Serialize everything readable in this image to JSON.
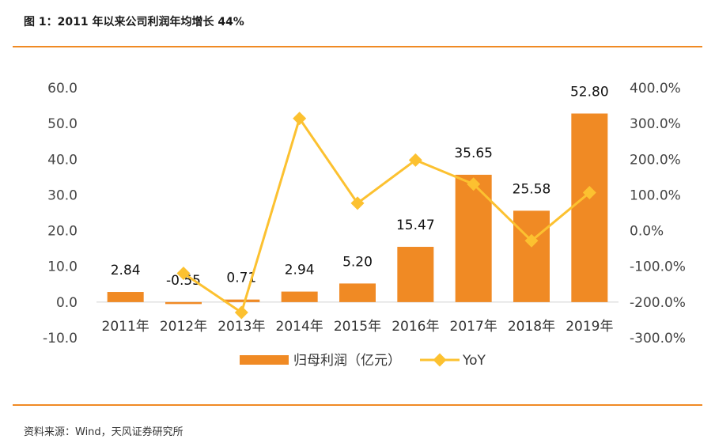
{
  "title": "图 1：2011 年以来公司利润年均增长 44%",
  "source": "资料来源：Wind，天风证券研究所",
  "colors": {
    "bar": "#f08a24",
    "line": "#fcc130",
    "rule": "#f08a24"
  },
  "chart_data": {
    "type": "bar",
    "title": "",
    "categories": [
      "2011年",
      "2012年",
      "2013年",
      "2014年",
      "2015年",
      "2016年",
      "2017年",
      "2018年",
      "2019年"
    ],
    "series": [
      {
        "name": "归母利润（亿元）",
        "type": "bar",
        "axis": "left",
        "values": [
          2.84,
          -0.55,
          0.71,
          2.94,
          5.2,
          15.47,
          35.65,
          25.58,
          52.8
        ],
        "labels": [
          "2.84",
          "-0.55",
          "0.71",
          "2.94",
          "5.20",
          "15.47",
          "35.65",
          "25.58",
          "52.80"
        ]
      },
      {
        "name": "YoY",
        "type": "line",
        "axis": "right",
        "values": [
          null,
          -119.4,
          -229.1,
          314.1,
          76.9,
          197.5,
          130.4,
          -28.2,
          106.4
        ]
      }
    ],
    "y_left": {
      "min": -10,
      "max": 60,
      "step": 10,
      "ticks": [
        "60.0",
        "50.0",
        "40.0",
        "30.0",
        "20.0",
        "10.0",
        "0.0",
        "-10.0"
      ]
    },
    "y_right": {
      "min": -300,
      "max": 400,
      "step": 100,
      "ticks": [
        "400.0%",
        "300.0%",
        "200.0%",
        "100.0%",
        "0.0%",
        "-100.0%",
        "-200.0%",
        "-300.0%"
      ]
    },
    "grid": false,
    "legend": "bottom"
  }
}
